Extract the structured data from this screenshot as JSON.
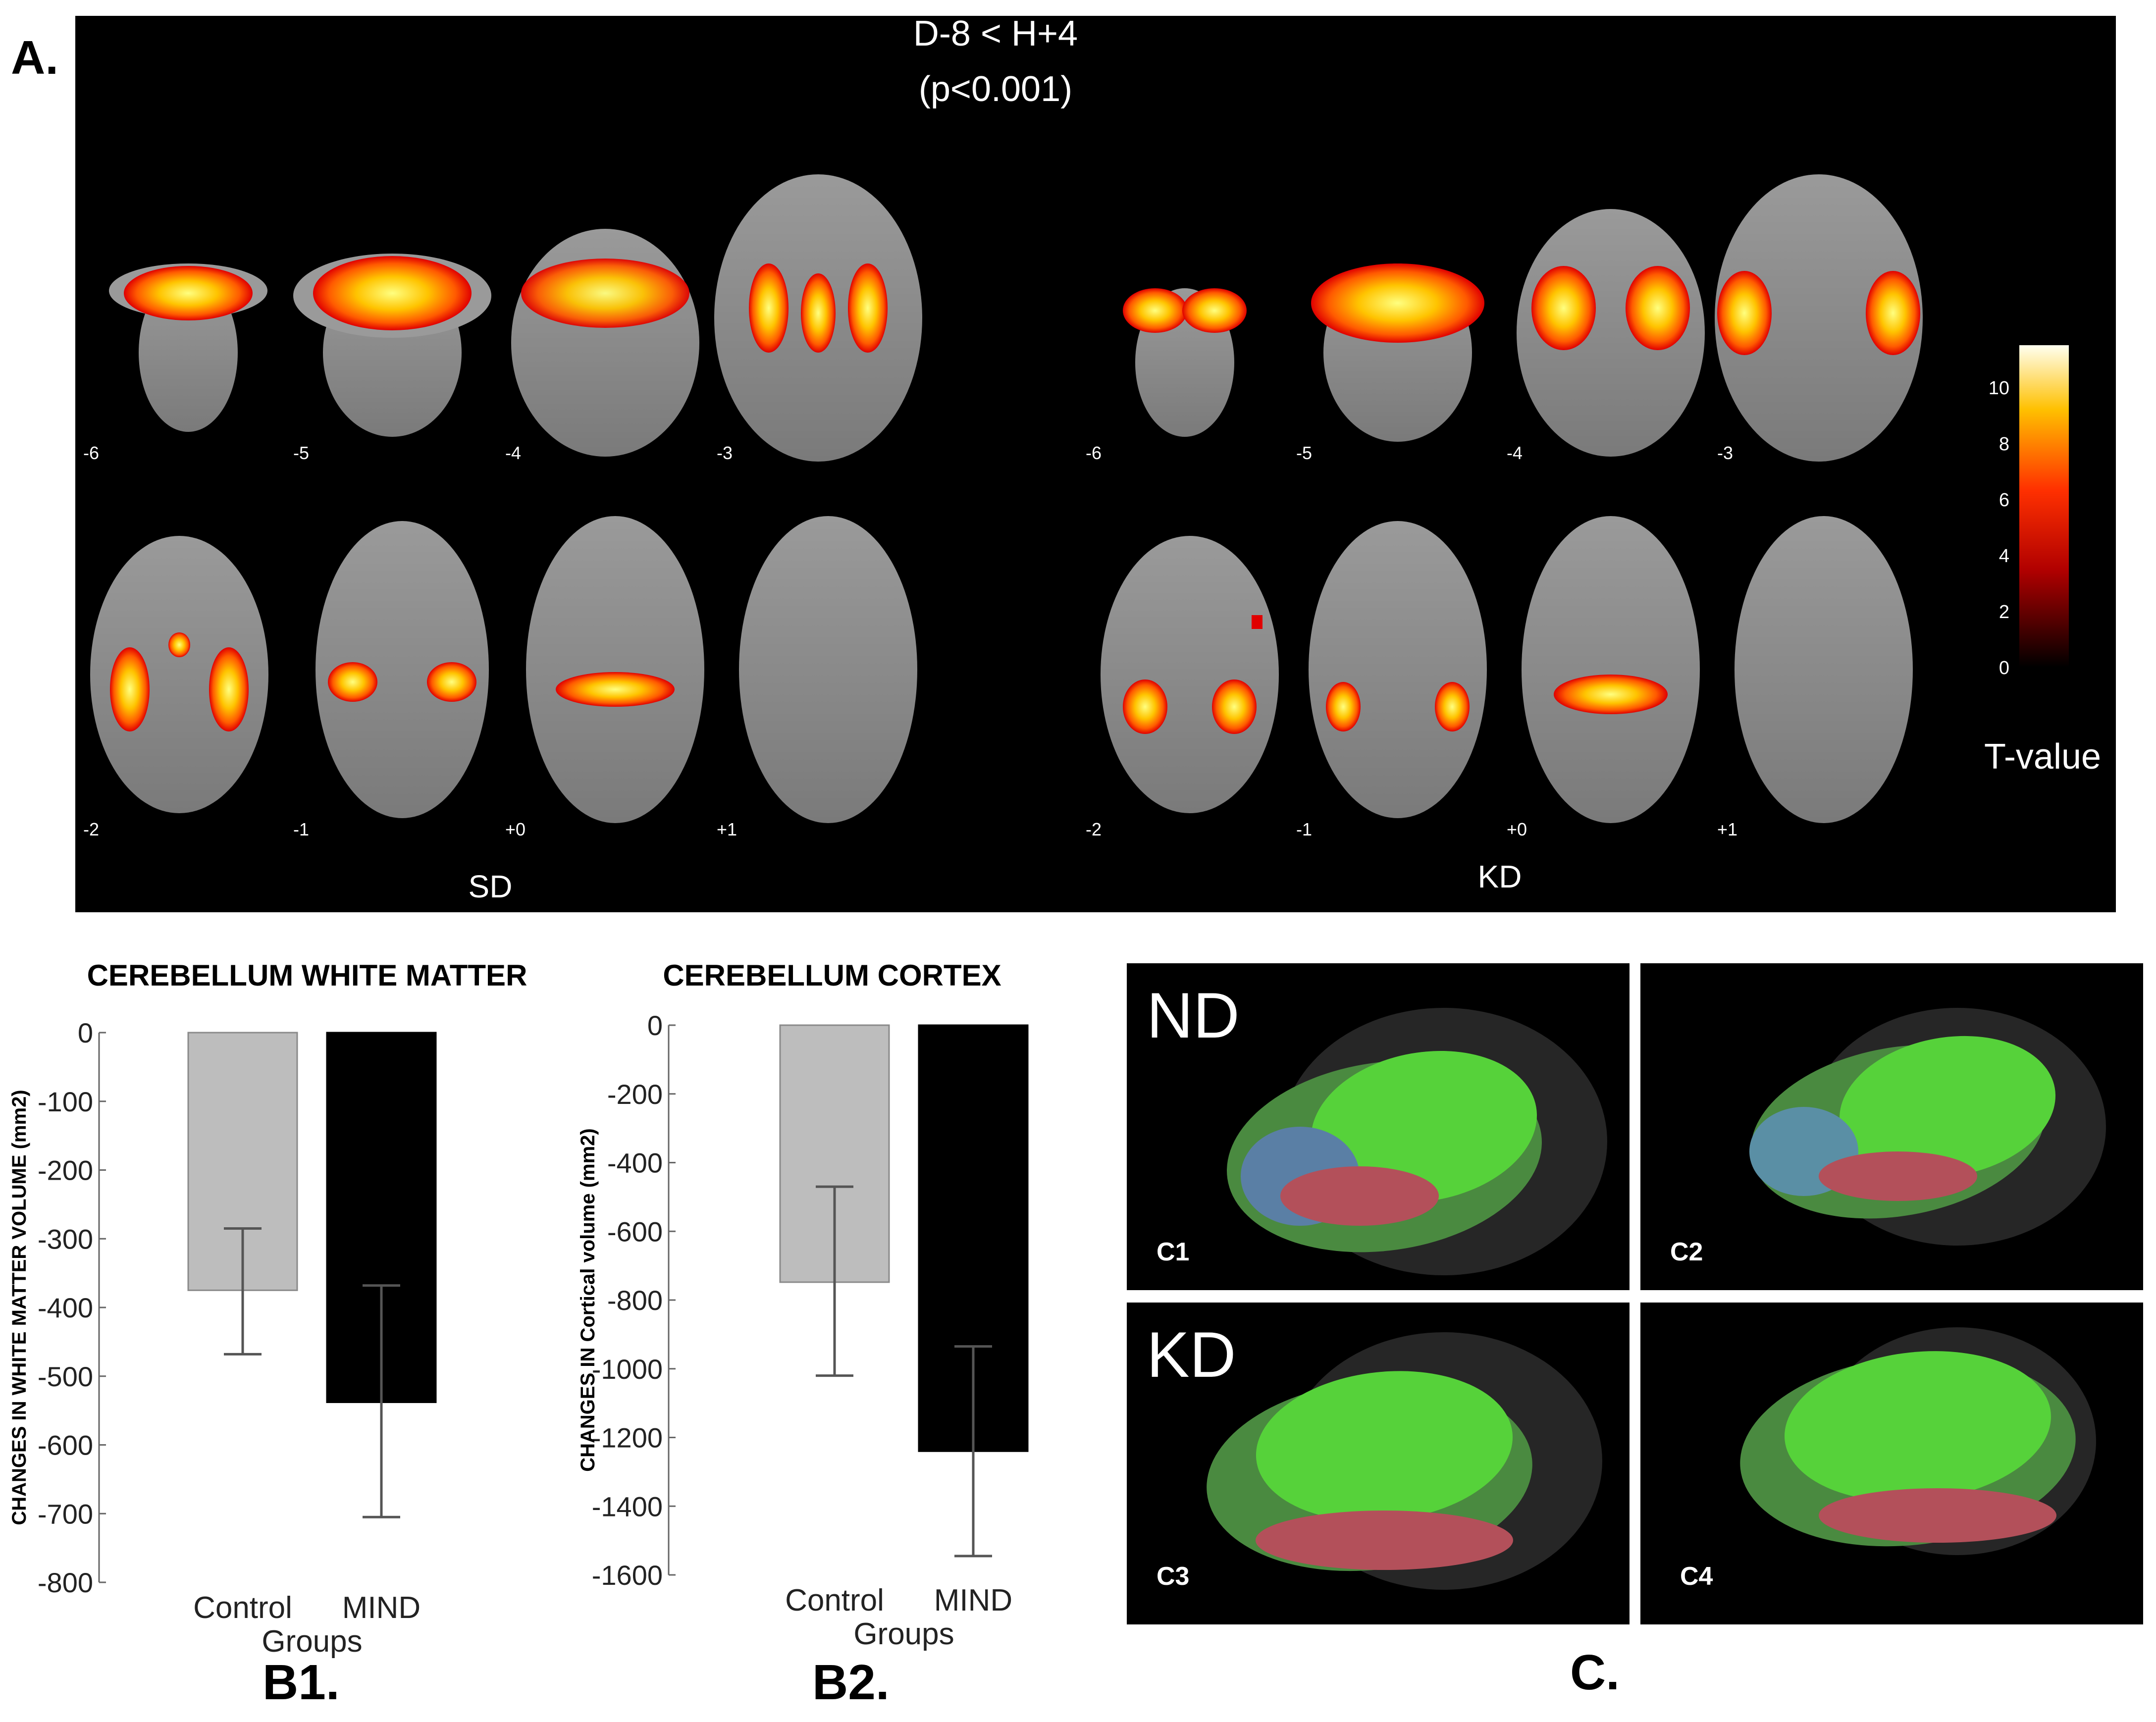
{
  "panel_a": {
    "label": "A.",
    "contrast": "D-8 < H+4",
    "pvalue": "(p<0.001)",
    "groups": [
      "SD",
      "KD"
    ],
    "slice_rows": [
      [
        "-6",
        "-5",
        "-4",
        "-3"
      ],
      [
        "-2",
        "-1",
        "+0",
        "+1"
      ]
    ],
    "colorbar": {
      "title": "T-value",
      "ticks": [
        "10",
        "8",
        "6",
        "4",
        "2",
        "0"
      ],
      "range": [
        0,
        11.5
      ]
    }
  },
  "chart_data": [
    {
      "type": "bar",
      "panel": "B1.",
      "title": "CEREBELLUM WHITE MATTER",
      "xlabel": "Groups",
      "ylabel": "CHANGES IN  WHITE MATTER VOLUME (mm2)",
      "categories": [
        "Control",
        "MIND"
      ],
      "values": [
        -375,
        -538
      ],
      "errors": [
        [
          -468,
          -285
        ],
        [
          -705,
          -368
        ]
      ],
      "colors": [
        "#bdbdbd",
        "#000000"
      ],
      "ylim": [
        -800,
        0
      ],
      "yticks": [
        "0",
        "-100",
        "-200",
        "-300",
        "-400",
        "-500",
        "-600",
        "-700",
        "-800"
      ]
    },
    {
      "type": "bar",
      "panel": "B2.",
      "title": "CEREBELLUM CORTEX",
      "xlabel": "Groups",
      "ylabel": "CHANGES IN  Cortical volume (mm2)",
      "categories": [
        "Control",
        "MIND"
      ],
      "values": [
        -748,
        -1240
      ],
      "errors": [
        [
          -1020,
          -470
        ],
        [
          -1545,
          -935
        ]
      ],
      "colors": [
        "#bdbdbd",
        "#000000"
      ],
      "ylim": [
        -1600,
        0
      ],
      "yticks": [
        "0",
        "-200",
        "-400",
        "-600",
        "-800",
        "-1000",
        "-1200",
        "-1400",
        "-1600"
      ]
    }
  ],
  "panel_c": {
    "label": "C.",
    "rows": [
      "ND",
      "KD"
    ],
    "subpanels": [
      "C1",
      "C2",
      "C3",
      "C4"
    ]
  }
}
